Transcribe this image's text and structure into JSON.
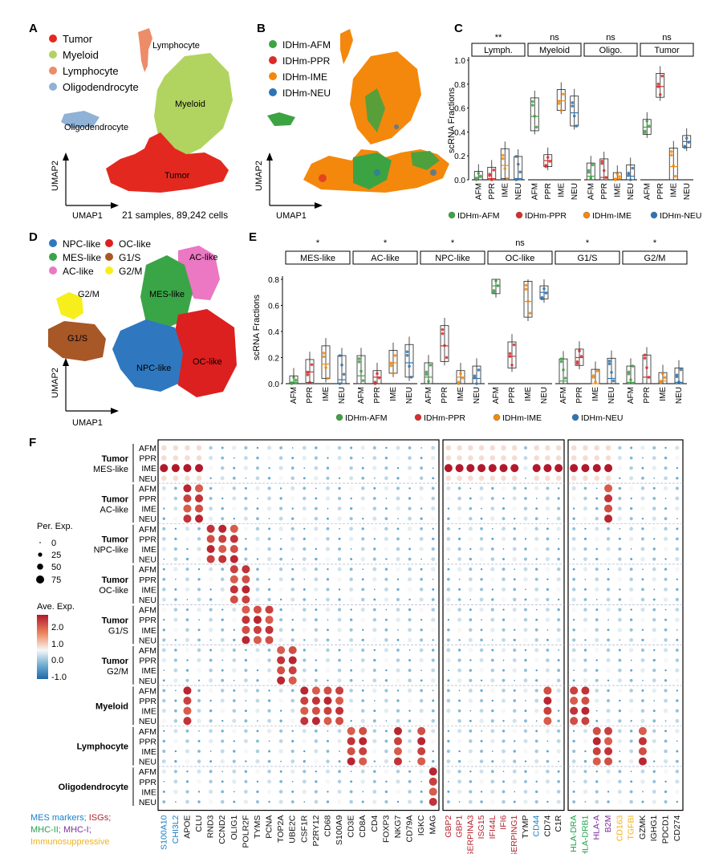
{
  "colors": {
    "tumor": "#e3291f",
    "myeloid": "#b1d460",
    "lymphocyte": "#ed8c69",
    "oligo": "#8fb2d6",
    "afm": "#3ca342",
    "ppr": "#dd2a2a",
    "ime": "#f4880c",
    "neu": "#2b75b6",
    "npc": "#2f78bf",
    "oc": "#dc1f1f",
    "mes": "#3aa547",
    "g1s": "#a85727",
    "ac": "#ec77c3",
    "g2m": "#f7ef1b",
    "mes_marker": "#1a7fc7",
    "isg": "#b3232b",
    "mhc2": "#22a24a",
    "mhc1": "#7b2f9f",
    "immuno": "#f0b21a"
  },
  "panelA": {
    "letter": "A",
    "legend": [
      "Tumor",
      "Myeloid",
      "Lymphocyte",
      "Oligodendrocyte"
    ],
    "labels": {
      "lymph": "Lymphocyte",
      "myeloid": "Myeloid",
      "oligo": "Oligodendrocyte",
      "tumor": "Tumor"
    },
    "ylab": "UMAP2",
    "xlab": "UMAP1",
    "caption": "21 samples, 89,242 cells"
  },
  "panelB": {
    "letter": "B",
    "legend": [
      "IDHm-AFM",
      "IDHm-PPR",
      "IDHm-IME",
      "IDHm-NEU"
    ],
    "ylab": "UMAP2",
    "xlab": "UMAP1"
  },
  "panelC": {
    "letter": "C",
    "ylabel": "scRNA Fractions",
    "yticks": [
      "0.0",
      "0.2",
      "0.4",
      "0.6",
      "0.8",
      "1.0"
    ],
    "facets": [
      "Lymph.",
      "Myeloid",
      "Oligo.",
      "Tumor"
    ],
    "sig": [
      "**",
      "ns",
      "ns",
      "ns"
    ],
    "xcats": [
      "AFM",
      "PPR",
      "IME",
      "NEU"
    ],
    "legend": [
      "IDHm-AFM",
      "IDHm-PPR",
      "IDHm-IME",
      "IDHm-NEU"
    ]
  },
  "panelD": {
    "letter": "D",
    "legend": [
      "NPC-like",
      "OC-like",
      "MES-like",
      "G1/S",
      "AC-like",
      "G2/M"
    ],
    "labels": {
      "ac": "AC-like",
      "g2m": "G2/M",
      "mes": "MES-like",
      "g1s": "G1/S",
      "npc": "NPC-like",
      "oc": "OC-like"
    },
    "ylab": "UMAP2",
    "xlab": "UMAP1"
  },
  "panelE": {
    "letter": "E",
    "ylabel": "scRNA Fractions",
    "yticks": [
      "0.0",
      "0.2",
      "0.4",
      "0.6",
      "0.8"
    ],
    "facets": [
      "MES-like",
      "AC-like",
      "NPC-like",
      "OC-like",
      "G1/S",
      "G2/M"
    ],
    "sig": [
      "*",
      "*",
      "*",
      "ns",
      "*",
      "*"
    ],
    "xcats": [
      "AFM",
      "PPR",
      "IME",
      "NEU"
    ],
    "legend": [
      "IDHm-AFM",
      "IDHm-PPR",
      "IDHm-IME",
      "IDHm-NEU"
    ]
  },
  "panelF": {
    "letter": "F",
    "groups": [
      {
        "line1": "Tumor",
        "line2": "MES-like"
      },
      {
        "line1": "Tumor",
        "line2": "AC-like"
      },
      {
        "line1": "Tumor",
        "line2": "NPC-like"
      },
      {
        "line1": "Tumor",
        "line2": "OC-like"
      },
      {
        "line1": "Tumor",
        "line2": "G1/S"
      },
      {
        "line1": "Tumor",
        "line2": "G2/M"
      },
      {
        "line1": "Myeloid",
        "line2": ""
      },
      {
        "line1": "Lymphocyte",
        "line2": ""
      },
      {
        "line1": "Oligodendrocyte",
        "line2": ""
      }
    ],
    "conditions": [
      "AFM",
      "PPR",
      "IME",
      "NEU"
    ],
    "genes_block1": [
      "S100A10",
      "CHI3L2",
      "APOE",
      "CLU",
      "RND3",
      "CCND2",
      "OLIG1",
      "POLR2F",
      "TYMS",
      "PCNA",
      "TOP2A",
      "UBE2C",
      "CSF1R",
      "P2RY12",
      "CD68",
      "S100A9",
      "CD3E",
      "CD8A",
      "CD4",
      "FOXP3",
      "NKG7",
      "CD79A",
      "IGKC",
      "MAG"
    ],
    "genes_block1_class": [
      "mes",
      "mes",
      "",
      "",
      "",
      "",
      "",
      "",
      "",
      "",
      "",
      "",
      "",
      "",
      "",
      "",
      "",
      "",
      "",
      "",
      "",
      "",
      "",
      ""
    ],
    "genes_block2": [
      "GBP2",
      "GBP1",
      "SERPINA3",
      "ISG15",
      "IFI44L",
      "IFI6",
      "SERPING1",
      "TYMP",
      "CD44",
      "CD74",
      "C1R"
    ],
    "genes_block2_class": [
      "isg",
      "isg",
      "isg",
      "isg",
      "isg",
      "isg",
      "isg",
      "",
      "mes",
      "",
      ""
    ],
    "genes_block3": [
      "HLA-DRA",
      "HLA-DRB1",
      "HLA-A",
      "B2M",
      "CD163",
      "TGFBI",
      "GZMK",
      "IGHG1",
      "PDCD1",
      "CD274"
    ],
    "genes_block3_class": [
      "mhc2",
      "mhc2",
      "mhc1",
      "mhc1",
      "immuno",
      "immuno",
      "",
      "",
      "",
      ""
    ],
    "size_legend": {
      "title": "Per. Exp.",
      "values": [
        "0",
        "25",
        "50",
        "75"
      ]
    },
    "color_legend": {
      "title": "Ave. Exp.",
      "values": [
        "2.0",
        "1.0",
        "0.0",
        "-1.0"
      ]
    },
    "markers_legend": {
      "mes": "MES markers;",
      "isg": " ISGs;",
      "mhc2": "MHC-II;",
      "mhc1": " MHC-I;",
      "immuno": "Immunosuppressive"
    }
  }
}
